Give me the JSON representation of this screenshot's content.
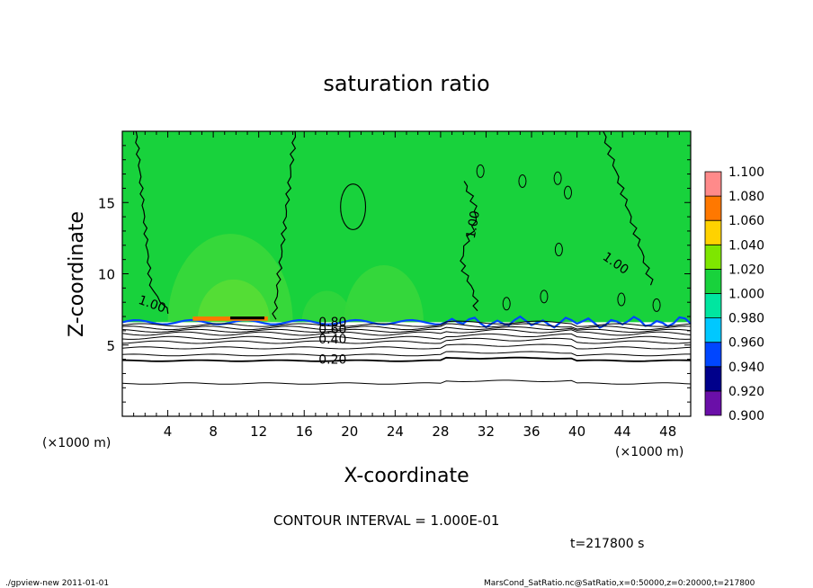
{
  "chart_data": {
    "type": "heatmap",
    "title": "saturation ratio",
    "xlabel": "X-coordinate",
    "ylabel": "Z-coordinate",
    "x_unit": "(×1000 m)",
    "z_unit": "(×1000 m)",
    "xlim": [
      0,
      50
    ],
    "ylim": [
      0,
      20
    ],
    "x_ticks": [
      4,
      8,
      12,
      16,
      20,
      24,
      28,
      32,
      36,
      40,
      44,
      48
    ],
    "y_ticks": [
      5,
      10,
      15
    ],
    "colorbar": {
      "levels": [
        0.9,
        0.92,
        0.94,
        0.96,
        0.98,
        1.0,
        1.02,
        1.04,
        1.06,
        1.08,
        1.1
      ],
      "labels": [
        "0.900",
        "0.920",
        "0.940",
        "0.960",
        "0.980",
        "1.000",
        "1.020",
        "1.040",
        "1.060",
        "1.080",
        "1.100"
      ],
      "colors": [
        "#6a0fa8",
        "#00008b",
        "#0046ff",
        "#00c8ff",
        "#00e6a0",
        "#18d23c",
        "#7ee600",
        "#ffd200",
        "#ff7800",
        "#ff2020",
        "#ff8a8a"
      ]
    },
    "contour_labels": [
      {
        "text": "1.00",
        "x": 2.5,
        "z": 7.6
      },
      {
        "text": "1.00",
        "x": 31.2,
        "z": 13.4
      },
      {
        "text": "1.00",
        "x": 43.2,
        "z": 10.5
      },
      {
        "text": "0.80",
        "x": 18.5,
        "z": 6.3
      },
      {
        "text": "0.60",
        "x": 18.5,
        "z": 5.8
      },
      {
        "text": "0.40",
        "x": 18.5,
        "z": 5.1
      },
      {
        "text": "0.20",
        "x": 18.5,
        "z": 3.7
      }
    ],
    "saturation_level_z": 6.6,
    "contour_interval_text": "CONTOUR INTERVAL = 1.000E-01",
    "time_text": "t=217800 s"
  },
  "footer": {
    "left": "./gpview-new   2011-01-01",
    "right": "MarsCond_SatRatio.nc@SatRatio,x=0:50000,z=0:20000,t=217800"
  }
}
